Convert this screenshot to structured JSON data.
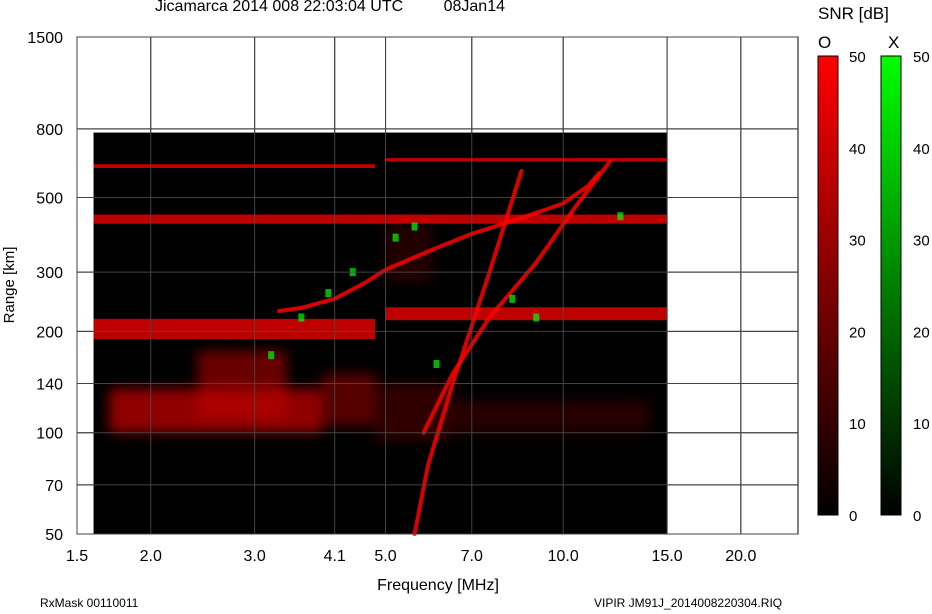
{
  "header": {
    "station": "Jicamarca 2014 008 22:03:04 UTC",
    "date": "08Jan14"
  },
  "footer": {
    "left": "RxMask 00110011",
    "right": "VIPIR  JM91J_2014008220304.RIQ"
  },
  "colorbar": {
    "title": "SNR [dB]",
    "o_label": "O",
    "x_label": "X",
    "ticks": [
      "50",
      "40",
      "30",
      "20",
      "10",
      "0"
    ],
    "o_color": "#ff0000",
    "x_color": "#00ff00",
    "range": [
      0,
      50
    ]
  },
  "chart_data": {
    "type": "heatmap",
    "title": "Jicamarca 2014 008 22:03:04 UTC",
    "xlabel": "Frequency [MHz]",
    "ylabel": "Range [km]",
    "x_scale": "log",
    "y_scale": "log",
    "xlim": [
      1.5,
      25
    ],
    "ylim": [
      50,
      1500
    ],
    "data_extent_x": [
      1.6,
      15.0
    ],
    "data_extent_y": [
      50,
      780
    ],
    "x_ticks": [
      1.5,
      2.0,
      3.0,
      4.1,
      5.0,
      7.0,
      10.0,
      15.0,
      20.0
    ],
    "x_tick_labels": [
      "1.5",
      "2.0",
      "3.0",
      "4.1",
      "5.0",
      "7.0",
      "10.0",
      "15.0",
      "20.0"
    ],
    "y_ticks": [
      50,
      70,
      100,
      140,
      200,
      300,
      500,
      800,
      1500
    ],
    "y_tick_labels": [
      "50",
      "70",
      "100",
      "140",
      "200",
      "300",
      "500",
      "800",
      "1500"
    ],
    "grid": true,
    "series": [
      {
        "name": "O",
        "color": "#ff0000",
        "traces": [
          {
            "kind": "band",
            "x": [
              1.6,
              4.8
            ],
            "y": [
              190,
              218
            ]
          },
          {
            "kind": "band",
            "x": [
              5.0,
              15.0
            ],
            "y": [
              216,
              236
            ]
          },
          {
            "kind": "band",
            "x": [
              1.6,
              15.0
            ],
            "y": [
              418,
              445
            ]
          },
          {
            "kind": "band",
            "x": [
              1.6,
              4.8
            ],
            "y": [
              612,
              628
            ]
          },
          {
            "kind": "band",
            "x": [
              5.0,
              15.0
            ],
            "y": [
              640,
              655
            ]
          },
          {
            "kind": "trace",
            "x": [
              3.3,
              3.6,
              4.1,
              4.6,
              5.0,
              6.0,
              7.0,
              8.0,
              9.0,
              10.0,
              11.0,
              11.5
            ],
            "y": [
              230,
              235,
              250,
              278,
              305,
              350,
              390,
              420,
              450,
              480,
              540,
              590
            ]
          },
          {
            "kind": "trace",
            "x": [
              5.8,
              6.5,
              7.5,
              9.0,
              10.5,
              12.0
            ],
            "y": [
              100,
              150,
              220,
              320,
              470,
              640
            ]
          },
          {
            "kind": "trace",
            "x": [
              5.6,
              5.9,
              6.5,
              7.5,
              8.5
            ],
            "y": [
              50,
              80,
              140,
              300,
              600
            ]
          }
        ]
      },
      {
        "name": "X",
        "color": "#00ff00",
        "traces": [
          {
            "kind": "scatter",
            "x": [
              3.2,
              3.6,
              4.0,
              4.4,
              5.2,
              5.6,
              6.1,
              8.2,
              9.0,
              12.5
            ],
            "y": [
              170,
              220,
              260,
              300,
              380,
              410,
              160,
              250,
              220,
              440
            ]
          }
        ]
      }
    ]
  }
}
